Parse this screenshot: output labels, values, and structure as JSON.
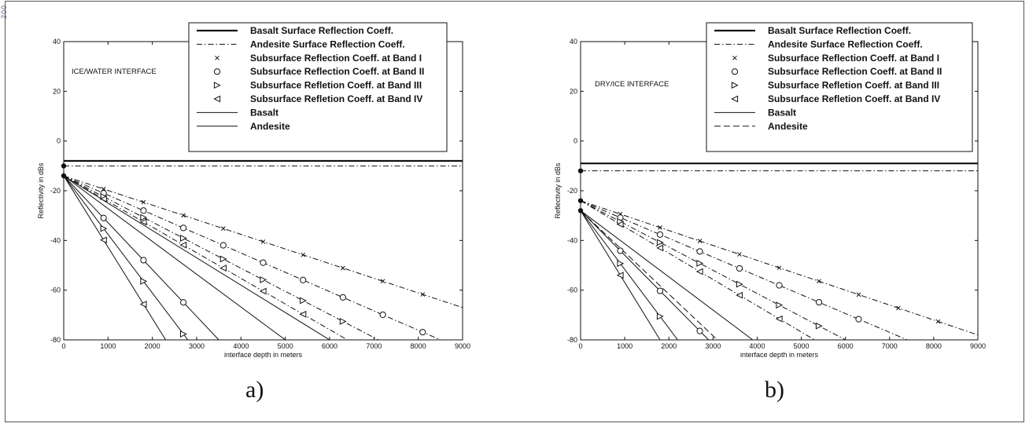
{
  "page": {
    "side_mark": "200"
  },
  "chart_data": [
    {
      "type": "line",
      "panel_label": "a)",
      "annotation": "ICE/WATER INTERFACE",
      "xlabel": "interface depth in meters",
      "ylabel": "Reflectivity in dBs",
      "xlim": [
        0,
        9000
      ],
      "ylim": [
        -80,
        40
      ],
      "xticks": [
        0,
        1000,
        2000,
        3000,
        4000,
        5000,
        6000,
        7000,
        8000,
        9000
      ],
      "yticks": [
        -80,
        -60,
        -40,
        -20,
        0,
        20,
        40
      ],
      "legend_position": "top-right",
      "series": [
        {
          "name": "Basalt Surface Reflection Coeff.",
          "style": "thick-solid",
          "x": [
            0,
            9000
          ],
          "y": [
            -8,
            -8
          ]
        },
        {
          "name": "Andesite Surface Reflection Coeff.",
          "style": "dash-dot",
          "x": [
            0,
            9000
          ],
          "y": [
            -10,
            -10
          ]
        },
        {
          "name": "Subsurface Reflection Coeff. at Band I",
          "style": "dash-dot",
          "marker": "x",
          "x": [
            0,
            9000
          ],
          "y": [
            -14,
            -67
          ],
          "marker_x": [
            900,
            1800,
            2700,
            3600,
            4500,
            5400,
            6300,
            7200,
            8100
          ]
        },
        {
          "name": "Subsurface Reflection Coeff. at Band II",
          "style": "dash-dot",
          "marker": "o",
          "x": [
            0,
            8500
          ],
          "y": [
            -14,
            -80
          ],
          "marker_x": [
            900,
            1800,
            2700,
            3600,
            4500,
            5400,
            6300,
            7200,
            8100
          ]
        },
        {
          "name": "Subsurface Refletion Coeff. at Band III",
          "style": "dash-dot",
          "marker": "triangle-right",
          "x": [
            0,
            7100
          ],
          "y": [
            -14,
            -80
          ],
          "marker_x": [
            900,
            1800,
            2700,
            3600,
            4500,
            5400,
            6300
          ]
        },
        {
          "name": "Subsurface Refletion Coeff. at Band IV",
          "style": "dash-dot",
          "marker": "triangle-left",
          "x": [
            0,
            6400
          ],
          "y": [
            -14,
            -80
          ],
          "marker_x": [
            900,
            1800,
            2700,
            3600,
            4500,
            5400
          ]
        },
        {
          "name": "Basalt",
          "style": "solid",
          "x": [
            0,
            6000
          ],
          "y": [
            -14,
            -80
          ]
        },
        {
          "name": "Andesite",
          "style": "solid",
          "x": [
            0,
            5000
          ],
          "y": [
            -14,
            -80
          ]
        },
        {
          "name": "",
          "style": "solid",
          "marker": "o",
          "x": [
            0,
            3500
          ],
          "y": [
            -14,
            -80
          ],
          "marker_x": [
            900,
            1800,
            2700
          ]
        },
        {
          "name": "",
          "style": "solid",
          "marker": "triangle-right",
          "x": [
            0,
            2800
          ],
          "y": [
            -14,
            -80
          ],
          "marker_x": [
            900,
            1800,
            2700
          ]
        },
        {
          "name": "",
          "style": "solid",
          "marker": "triangle-left",
          "x": [
            0,
            2300
          ],
          "y": [
            -14,
            -80
          ],
          "marker_x": [
            900,
            1800
          ]
        }
      ]
    },
    {
      "type": "line",
      "panel_label": "b)",
      "annotation": "DRY/ICE INTERFACE",
      "xlabel": "interface depth in meters",
      "ylabel": "Reflectivity in dBs",
      "xlim": [
        0,
        9000
      ],
      "ylim": [
        -80,
        40
      ],
      "xticks": [
        0,
        1000,
        2000,
        3000,
        4000,
        5000,
        6000,
        7000,
        8000,
        9000
      ],
      "yticks": [
        -80,
        -60,
        -40,
        -20,
        0,
        20,
        40
      ],
      "legend_position": "top-right",
      "series": [
        {
          "name": "Basalt Surface Reflection Coeff.",
          "style": "thick-solid",
          "x": [
            0,
            9000
          ],
          "y": [
            -9,
            -9
          ]
        },
        {
          "name": "Andesite Surface Reflection Coeff.",
          "style": "dash-dot",
          "x": [
            0,
            9000
          ],
          "y": [
            -12,
            -12
          ]
        },
        {
          "name": "Subsurface Reflection Coeff. at Band I",
          "style": "dash-dot",
          "marker": "x",
          "x": [
            0,
            9000
          ],
          "y": [
            -24,
            -78
          ],
          "marker_x": [
            900,
            1800,
            2700,
            3600,
            4500,
            5400,
            6300,
            7200,
            8100
          ]
        },
        {
          "name": "Subsurface Reflection Coeff. at Band II",
          "style": "dash-dot",
          "marker": "o",
          "x": [
            0,
            7400
          ],
          "y": [
            -24,
            -80
          ],
          "marker_x": [
            900,
            1800,
            2700,
            3600,
            4500,
            5400,
            6300
          ]
        },
        {
          "name": "Subsurface Refletion Coeff. at Band III",
          "style": "dash-dot",
          "marker": "triangle-right",
          "x": [
            0,
            6000
          ],
          "y": [
            -24,
            -80
          ],
          "marker_x": [
            900,
            1800,
            2700,
            3600,
            4500,
            5400
          ]
        },
        {
          "name": "Subsurface Refletion Coeff. at Band IV",
          "style": "dash-dot",
          "marker": "triangle-left",
          "x": [
            0,
            5300
          ],
          "y": [
            -24,
            -80
          ],
          "marker_x": [
            900,
            1800,
            2700,
            3600,
            4500
          ]
        },
        {
          "name": "Basalt",
          "style": "solid",
          "x": [
            0,
            3900
          ],
          "y": [
            -28,
            -80
          ]
        },
        {
          "name": "Andesite",
          "style": "dash",
          "x": [
            0,
            3100
          ],
          "y": [
            -28,
            -80
          ]
        },
        {
          "name": "",
          "style": "solid",
          "marker": "o",
          "x": [
            0,
            2900
          ],
          "y": [
            -28,
            -80
          ],
          "marker_x": [
            900,
            1800,
            2700
          ]
        },
        {
          "name": "",
          "style": "solid",
          "marker": "triangle-right",
          "x": [
            0,
            2200
          ],
          "y": [
            -28,
            -80
          ],
          "marker_x": [
            900,
            1800
          ]
        },
        {
          "name": "",
          "style": "solid",
          "marker": "triangle-left",
          "x": [
            0,
            1800
          ],
          "y": [
            -28,
            -80
          ],
          "marker_x": [
            900
          ]
        }
      ]
    }
  ]
}
